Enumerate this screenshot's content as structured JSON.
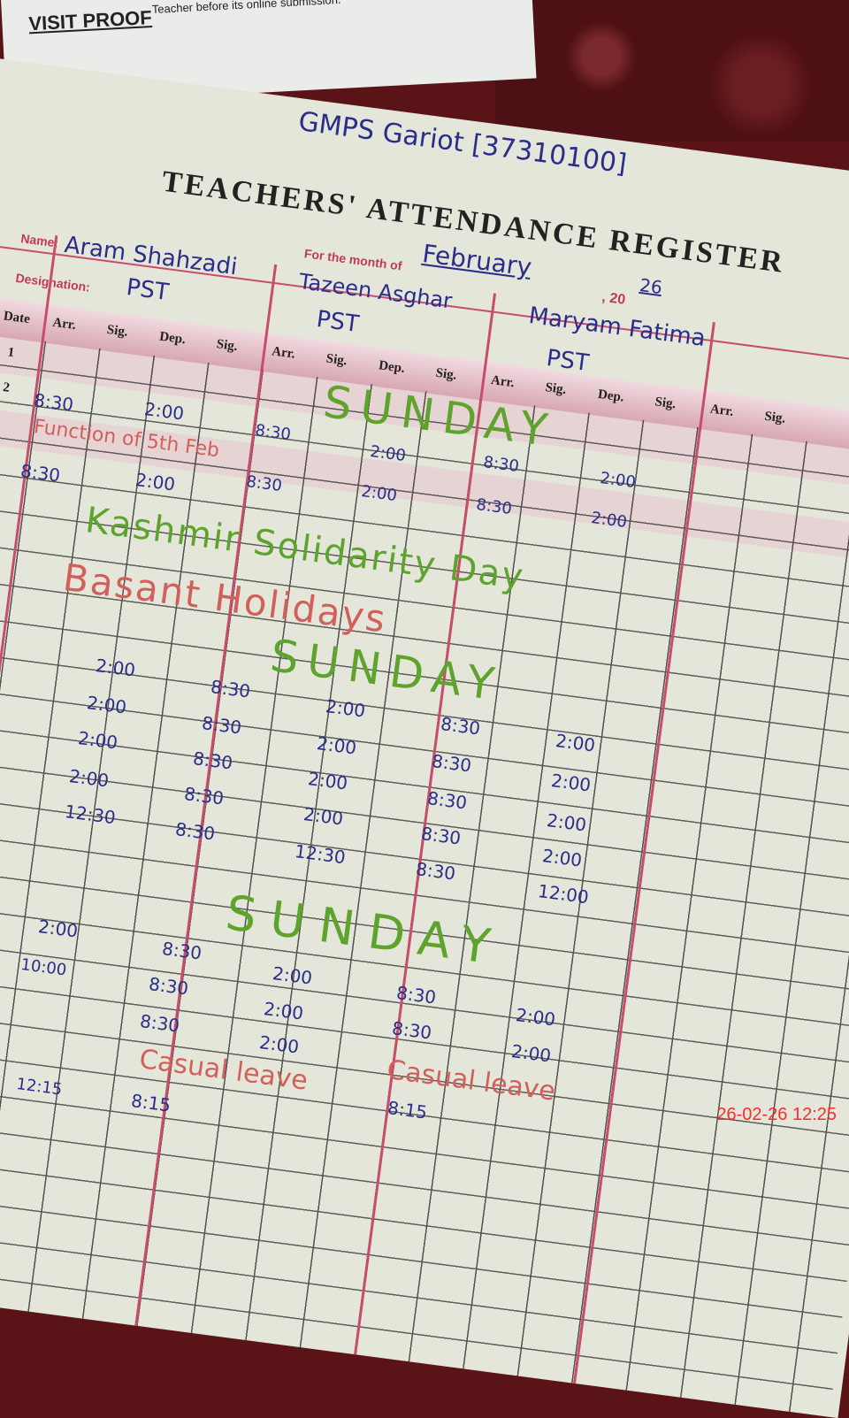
{
  "slip": {
    "title": "VISIT PROOF",
    "note": "Teacher before its online submission."
  },
  "register": {
    "school": "GMPS Gariot [37310100]",
    "title": "TEACHERS' ATTENDANCE REGISTER",
    "name_label": "Name:",
    "designation_label": "Designation:",
    "month_label": "For the month of",
    "month_value": "February",
    "year_prefix": ", 20",
    "year_value": "26",
    "date_header": "Date",
    "columns": [
      "Arr.",
      "Sig.",
      "Dep.",
      "Sig."
    ],
    "teachers": [
      {
        "name": "Aram Shahzadi",
        "designation": "PST"
      },
      {
        "name": "Tazeen Asghar",
        "designation": "PST"
      },
      {
        "name": "Maryam Fatima",
        "designation": "PST"
      }
    ],
    "row_numbers": [
      "1",
      "2"
    ],
    "annotations": {
      "sunday": "SUNDAY",
      "sunday_spaced": "S U N D A Y",
      "function": "Function of 5th Feb",
      "kashmir": "Kashmir Solidarity Day",
      "basant": "Basant Holidays",
      "casual_leave": "Casual leave"
    },
    "times": {
      "arr": "8:30",
      "dep": "2:00",
      "dep_half": "12:30",
      "dep_noon": "12:00",
      "arr_alt": "10:00",
      "dep_alt": "12:15",
      "arr_late": "8:15"
    }
  },
  "timestamp": "26-02-26 12:25",
  "colors": {
    "ink_blue": "#2a2d8a",
    "ink_green": "#5ea32c",
    "ink_red": "#d2605a",
    "print_pink": "#c84d6a",
    "stamp": "#ff2a2a"
  }
}
